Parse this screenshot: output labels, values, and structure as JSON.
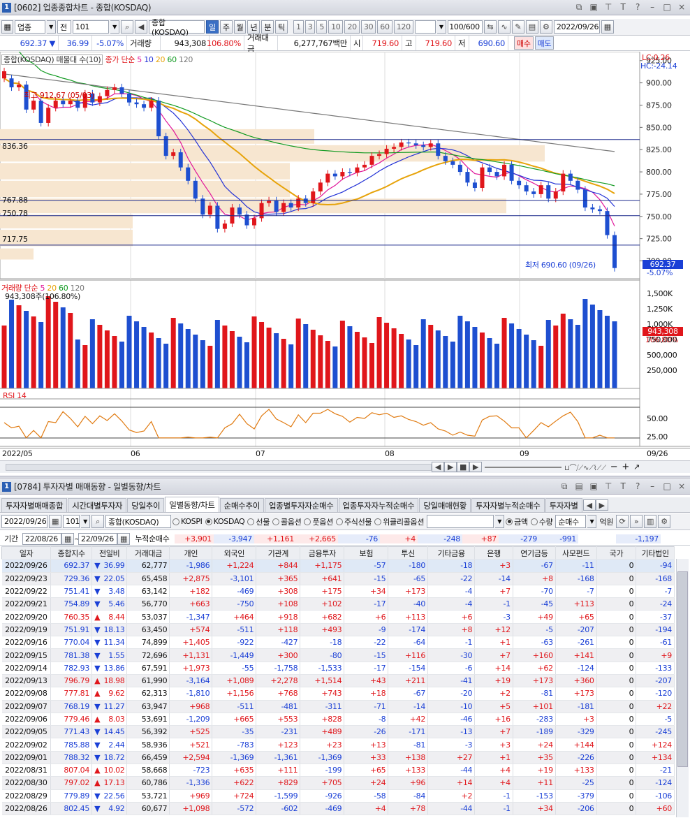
{
  "win1": {
    "num": "1",
    "title": "[0602] 업종종합차트 - 종합(KOSDAQ)"
  },
  "toolbar1": {
    "market": "업종",
    "kind": "전",
    "code": "101",
    "name": "종합(KOSDAQ)",
    "periods": [
      "일",
      "주",
      "월",
      "년",
      "분",
      "틱"
    ],
    "mins": [
      "1",
      "3",
      "5",
      "10",
      "20",
      "30",
      "60",
      "120"
    ],
    "count": "100/600",
    "date": "2022/09/26"
  },
  "quote": {
    "price": "692.37",
    "arrow": "▼",
    "change": "36.99",
    "rate": "-5.07%",
    "vol_label": "거래량",
    "vol": "943,308",
    "vol_rate": "106.80%",
    "amt_label": "거래대금",
    "amt": "6,277,767백만",
    "open_label": "시",
    "open": "719.60",
    "high_label": "고",
    "high": "719.60",
    "low_label": "저",
    "low": "690.60",
    "buy": "매수",
    "sell": "매도"
  },
  "price_chart": {
    "legend_name": "종합(KOSDAQ) 매물대 수(10)",
    "legend_ma": "종가 단순",
    "ma_periods": [
      "5",
      "10",
      "20",
      "60",
      "120"
    ],
    "lc": "LC:0.26",
    "hc": "HC:-24.14",
    "high_note": "최고 912.67 (05/03)",
    "low_note": "최저 690.60 (09/26)",
    "levels": [
      "836.36",
      "767.88",
      "750.78",
      "717.75"
    ],
    "yticks": [
      "925.00",
      "900.00",
      "875.00",
      "850.00",
      "825.00",
      "800.00",
      "775.00",
      "750.00",
      "725.00",
      "700.00"
    ],
    "last_price": "692.37",
    "last_rate": "-5.07%"
  },
  "vol_chart": {
    "legend": "거래량 단순",
    "periods": [
      "5",
      "20",
      "60",
      "120"
    ],
    "value_note": "943,308주(106.80%)",
    "yticks": [
      "1,500K",
      "1,250K",
      "1,000K",
      "750,000",
      "500,000",
      "250,000"
    ],
    "last": "943,308",
    "last_rate": "106.80%"
  },
  "rsi_chart": {
    "legend": "RSI 14",
    "yticks": [
      "50.00",
      "25.00"
    ]
  },
  "xaxis": {
    "labels": [
      "2022/05",
      "06",
      "07",
      "08",
      "09",
      "09/26"
    ]
  },
  "chart_data": {
    "type": "candlestick",
    "ylim": [
      680,
      935
    ],
    "series": [
      {
        "name": "candles",
        "closes": [
          905,
          895,
          898,
          870,
          880,
          855,
          872,
          880,
          876,
          880,
          872,
          888,
          878,
          885,
          892,
          895,
          888,
          878,
          876,
          872,
          880,
          840,
          818,
          822,
          805,
          790,
          770,
          752,
          762,
          736,
          742,
          760,
          752,
          740,
          748,
          765,
          768,
          755,
          765,
          760,
          770,
          765,
          778,
          788,
          798,
          795,
          800,
          799,
          805,
          808,
          818,
          820,
          826,
          828,
          833,
          832,
          830,
          828,
          832,
          818,
          812,
          808,
          800,
          788,
          782,
          805,
          800,
          795,
          808,
          790,
          785,
          778,
          775,
          785,
          770,
          778,
          798,
          790,
          780,
          760,
          758,
          756,
          729,
          692
        ],
        "up": [
          1,
          0,
          1,
          0,
          1,
          0,
          1,
          1,
          0,
          1,
          0,
          1,
          0,
          1,
          1,
          1,
          0,
          0,
          0,
          0,
          1,
          0,
          0,
          1,
          0,
          0,
          0,
          0,
          1,
          0,
          1,
          1,
          0,
          0,
          1,
          1,
          1,
          0,
          1,
          0,
          1,
          0,
          1,
          1,
          1,
          0,
          1,
          0,
          1,
          1,
          1,
          1,
          1,
          1,
          1,
          0,
          0,
          0,
          1,
          0,
          0,
          0,
          0,
          0,
          0,
          1,
          0,
          0,
          1,
          0,
          0,
          0,
          0,
          1,
          0,
          1,
          1,
          0,
          0,
          0,
          0,
          0,
          0,
          0
        ]
      }
    ]
  },
  "win2": {
    "num": "1",
    "title": "[0784] 투자자별 매매동향 - 일별동향/차트"
  },
  "tabs": [
    "투자자별매매종합",
    "시간대별투자자",
    "당일추이",
    "일별동향/차트",
    "순매수추이",
    "업종별투자자순매수",
    "업종투자자누적순매수",
    "당일매매현황",
    "투자자별누적순매수",
    "투자자별"
  ],
  "filter": {
    "date": "2022/09/26",
    "code": "101",
    "name": "종합(KOSDAQ)",
    "markets": [
      "KOSPI",
      "KOSDAQ",
      "선물",
      "콜옵션",
      "풋옵션",
      "주식선물",
      "위클리콜옵션"
    ],
    "units": [
      "금액",
      "수량"
    ],
    "mode": "순매수",
    "unit": "억원"
  },
  "period": {
    "label": "기간",
    "from": "22/08/26",
    "to": "22/09/26",
    "cum_label": "누적순매수",
    "cums": [
      "+3,901",
      "-3,947",
      "+1,161",
      "+2,665",
      "-76",
      "+4",
      "-248",
      "+87",
      "-279",
      "-991",
      "",
      "-1,197"
    ]
  },
  "columns": [
    "일자",
    "종합지수",
    "전일비",
    "거래대금",
    "개인",
    "외국인",
    "기관계",
    "금융투자",
    "보험",
    "투신",
    "기타금융",
    "은행",
    "연기금등",
    "사모펀드",
    "국가",
    "기타법인"
  ],
  "rows": [
    [
      "2022/09/26",
      "692.37",
      "▼",
      "36.99",
      "62,777",
      "-1,986",
      "+1,224",
      "+844",
      "+1,175",
      "-57",
      "-180",
      "-18",
      "+3",
      "-67",
      "-11",
      "0",
      "-94"
    ],
    [
      "2022/09/23",
      "729.36",
      "▼",
      "22.05",
      "65,458",
      "+2,875",
      "-3,101",
      "+365",
      "+641",
      "-15",
      "-65",
      "-22",
      "-14",
      "+8",
      "-168",
      "0",
      "-168"
    ],
    [
      "2022/09/22",
      "751.41",
      "▼",
      "3.48",
      "63,142",
      "+182",
      "-469",
      "+308",
      "+175",
      "+34",
      "+173",
      "-4",
      "+7",
      "-70",
      "-7",
      "0",
      "-7"
    ],
    [
      "2022/09/21",
      "754.89",
      "▼",
      "5.46",
      "56,770",
      "+663",
      "-750",
      "+108",
      "+102",
      "-17",
      "-40",
      "-4",
      "-1",
      "-45",
      "+113",
      "0",
      "-24"
    ],
    [
      "2022/09/20",
      "760.35",
      "▲",
      "8.44",
      "53,037",
      "-1,347",
      "+464",
      "+918",
      "+682",
      "+6",
      "+113",
      "+6",
      "-3",
      "+49",
      "+65",
      "0",
      "-37"
    ],
    [
      "2022/09/19",
      "751.91",
      "▼",
      "18.13",
      "63,450",
      "+574",
      "-511",
      "+118",
      "+493",
      "-9",
      "-174",
      "+8",
      "+12",
      "-5",
      "-207",
      "0",
      "-194"
    ],
    [
      "2022/09/16",
      "770.04",
      "▼",
      "11.34",
      "74,899",
      "+1,405",
      "-922",
      "-427",
      "-18",
      "-22",
      "-64",
      "-1",
      "+1",
      "-63",
      "-261",
      "0",
      "-61"
    ],
    [
      "2022/09/15",
      "781.38",
      "▼",
      "1.55",
      "72,696",
      "+1,131",
      "-1,449",
      "+300",
      "-80",
      "-15",
      "+116",
      "-30",
      "+7",
      "+160",
      "+141",
      "0",
      "+9"
    ],
    [
      "2022/09/14",
      "782.93",
      "▼",
      "13.86",
      "67,591",
      "+1,973",
      "-55",
      "-1,758",
      "-1,533",
      "-17",
      "-154",
      "-6",
      "+14",
      "+62",
      "-124",
      "0",
      "-133"
    ],
    [
      "2022/09/13",
      "796.79",
      "▲",
      "18.98",
      "61,990",
      "-3,164",
      "+1,089",
      "+2,278",
      "+1,514",
      "+43",
      "+211",
      "-41",
      "+19",
      "+173",
      "+360",
      "0",
      "-207"
    ],
    [
      "2022/09/08",
      "777.81",
      "▲",
      "9.62",
      "62,313",
      "-1,810",
      "+1,156",
      "+768",
      "+743",
      "+18",
      "-67",
      "-20",
      "+2",
      "-81",
      "+173",
      "0",
      "-120"
    ],
    [
      "2022/09/07",
      "768.19",
      "▼",
      "11.27",
      "63,947",
      "+968",
      "-511",
      "-481",
      "-311",
      "-71",
      "-14",
      "-10",
      "+5",
      "+101",
      "-181",
      "0",
      "+22"
    ],
    [
      "2022/09/06",
      "779.46",
      "▲",
      "8.03",
      "53,691",
      "-1,209",
      "+665",
      "+553",
      "+828",
      "-8",
      "+42",
      "-46",
      "+16",
      "-283",
      "+3",
      "0",
      "-5"
    ],
    [
      "2022/09/05",
      "771.43",
      "▼",
      "14.45",
      "56,392",
      "+525",
      "-35",
      "-231",
      "+489",
      "-26",
      "-171",
      "-13",
      "+7",
      "-189",
      "-329",
      "0",
      "-245"
    ],
    [
      "2022/09/02",
      "785.88",
      "▼",
      "2.44",
      "58,936",
      "+521",
      "-783",
      "+123",
      "+23",
      "+13",
      "-81",
      "-3",
      "+3",
      "+24",
      "+144",
      "0",
      "+124"
    ],
    [
      "2022/09/01",
      "788.32",
      "▼",
      "18.72",
      "66,459",
      "+2,594",
      "-1,369",
      "-1,361",
      "-1,369",
      "+33",
      "+138",
      "+27",
      "+1",
      "+35",
      "-226",
      "0",
      "+134"
    ],
    [
      "2022/08/31",
      "807.04",
      "▲",
      "10.02",
      "58,668",
      "-723",
      "+635",
      "+111",
      "-199",
      "+65",
      "+133",
      "-44",
      "+4",
      "+19",
      "+133",
      "0",
      "-21"
    ],
    [
      "2022/08/30",
      "797.02",
      "▲",
      "17.13",
      "60,786",
      "-1,336",
      "+622",
      "+829",
      "+705",
      "+24",
      "+96",
      "+14",
      "+4",
      "+11",
      "-25",
      "0",
      "-124"
    ],
    [
      "2022/08/29",
      "779.89",
      "▼",
      "22.56",
      "53,721",
      "+969",
      "+724",
      "-1,599",
      "-926",
      "-58",
      "-84",
      "+2",
      "-1",
      "-153",
      "-379",
      "0",
      "-106"
    ],
    [
      "2022/08/26",
      "802.45",
      "▼",
      "4.92",
      "60,677",
      "+1,098",
      "-572",
      "-602",
      "-469",
      "+4",
      "+78",
      "-44",
      "-1",
      "+34",
      "-206",
      "0",
      "+60"
    ]
  ]
}
